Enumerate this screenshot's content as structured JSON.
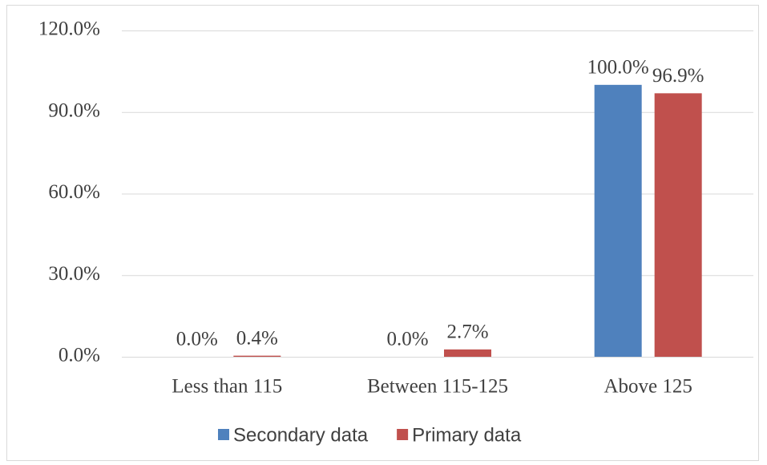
{
  "chart_data": {
    "type": "bar",
    "categories": [
      "Less than 115",
      "Between 115-125",
      "Above 125"
    ],
    "series": [
      {
        "name": "Secondary data",
        "color": "#4f81bd",
        "values": [
          0,
          0,
          100
        ],
        "value_labels": [
          "0.0%",
          "0.0%",
          "100.0%"
        ]
      },
      {
        "name": "Primary data",
        "color": "#c0504d",
        "values": [
          0.4,
          2.7,
          96.9
        ],
        "value_labels": [
          "0.4%",
          "2.7%",
          "96.9%"
        ]
      }
    ],
    "ylim": [
      0,
      120
    ],
    "yticks": [
      {
        "value": 0,
        "label": "0.0%"
      },
      {
        "value": 30,
        "label": "30.0%"
      },
      {
        "value": 60,
        "label": "60.0%"
      },
      {
        "value": 90,
        "label": "90.0%"
      },
      {
        "value": 120,
        "label": "120.0%"
      }
    ],
    "grid": true,
    "legend": "bottom"
  }
}
